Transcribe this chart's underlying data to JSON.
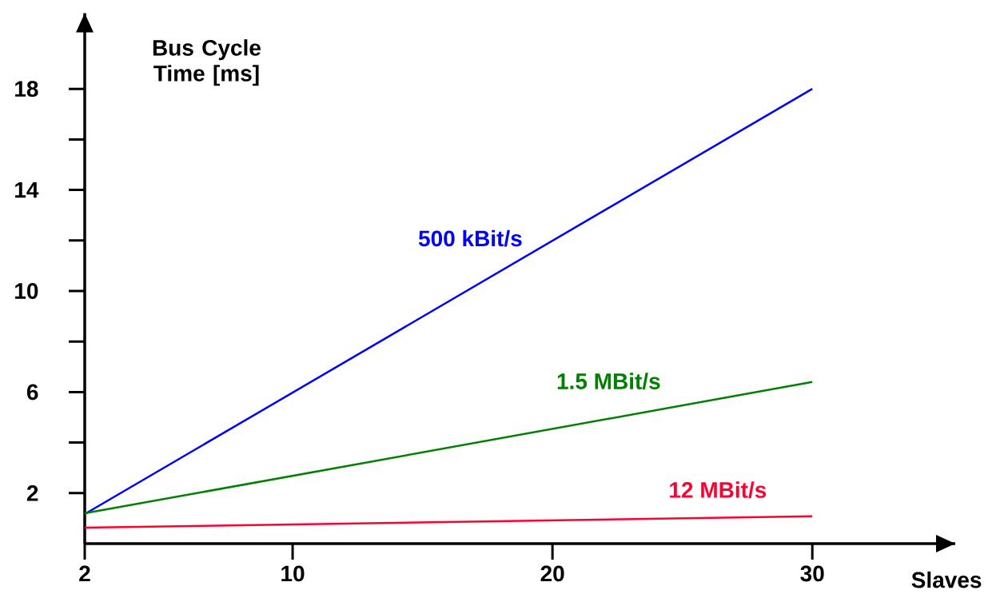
{
  "chart_data": {
    "type": "line",
    "xlabel": "Slaves",
    "ylabel": "Bus Cycle Time [ms]",
    "x": [
      2,
      30
    ],
    "series": [
      {
        "name": "500 kBit/s",
        "color": "#0000ff",
        "values": [
          1.17,
          18
        ]
      },
      {
        "name": "1.5 MBit/s",
        "color": "#008000",
        "values": [
          1.2,
          6.4
        ]
      },
      {
        "name": "12 MBit/s",
        "color": "#ff0033",
        "values": [
          0.63,
          1.08
        ]
      }
    ],
    "xlim": [
      2,
      35.5
    ],
    "ylim": [
      0,
      21
    ],
    "xticks": [
      2,
      10,
      20,
      30
    ],
    "yticks": [
      2,
      6,
      10,
      14,
      18
    ],
    "legend": false,
    "grid": false
  }
}
